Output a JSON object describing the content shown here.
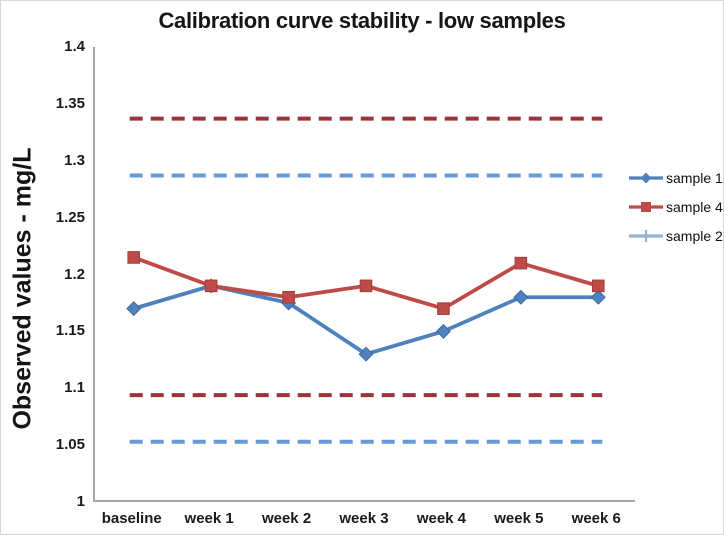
{
  "chart_data": {
    "type": "line",
    "title": "Calibration curve stability - low samples",
    "xlabel": "",
    "ylabel": "Observed values - mg/L",
    "ylim": [
      1,
      1.4
    ],
    "ytick_step": 0.05,
    "y_ticks": [
      "1.4",
      "1.35",
      "1.3",
      "1.25",
      "1.2",
      "1.15",
      "1.1",
      "1.05",
      "1"
    ],
    "categories": [
      "baseline",
      "week 1",
      "week 2",
      "week 3",
      "week 4",
      "week 5",
      "week 6"
    ],
    "grid": false,
    "legend_position": "right",
    "series": [
      {
        "name": "sample 1",
        "marker": "diamond",
        "style": "solid",
        "color": "#4F81BD",
        "edge": "#3A6BA5",
        "values": [
          1.17,
          1.19,
          1.175,
          1.13,
          1.15,
          1.18,
          1.18
        ]
      },
      {
        "name": "sample 4",
        "marker": "square",
        "style": "solid",
        "color": "#BE4B48",
        "edge": "#A23E3B",
        "values": [
          1.215,
          1.19,
          1.18,
          1.19,
          1.17,
          1.21,
          1.19
        ]
      }
    ],
    "reference_lines": [
      {
        "name": "upper limit dark red",
        "value": 1.337,
        "style": "dashed",
        "color": "#9B3438"
      },
      {
        "name": "upper limit light blue",
        "value": 1.287,
        "style": "dashed",
        "color": "#6699D8"
      },
      {
        "name": "lower limit dark red",
        "value": 1.094,
        "style": "dashed",
        "color": "#9B3438"
      },
      {
        "name": "lower limit light blue",
        "value": 1.053,
        "style": "dashed",
        "color": "#6699D8"
      }
    ],
    "legend": [
      {
        "label": "sample 1",
        "color": "#4F81BD",
        "marker": "diamond"
      },
      {
        "label": "sample 4",
        "color": "#BE4B48",
        "marker": "square"
      },
      {
        "label": "sample 2",
        "color": "#95B3D7",
        "marker": "plus"
      }
    ]
  }
}
